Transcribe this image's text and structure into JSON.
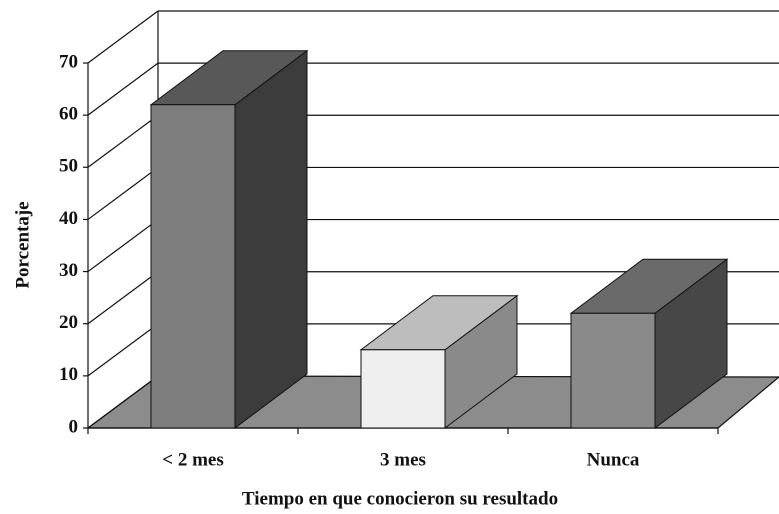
{
  "chart_data": {
    "type": "bar3d",
    "x_label": "Tiempo en que conocieron su resultado",
    "y_label": "Porcentaje",
    "categories": [
      "< 2 mes",
      "3 mes",
      "Nunca"
    ],
    "values": [
      62,
      15,
      22
    ],
    "colors": [
      [
        "#7d7d7d",
        "#585858",
        "#3c3c3c"
      ],
      [
        "#efefef",
        "#bdbdbd",
        "#8a8a8a"
      ],
      [
        "#8a8a8a",
        "#6a6a6a",
        "#474747"
      ]
    ],
    "ylim": [
      0,
      70
    ],
    "yticks": [
      0,
      10,
      20,
      30,
      40,
      50,
      60,
      70
    ],
    "grid": true
  }
}
